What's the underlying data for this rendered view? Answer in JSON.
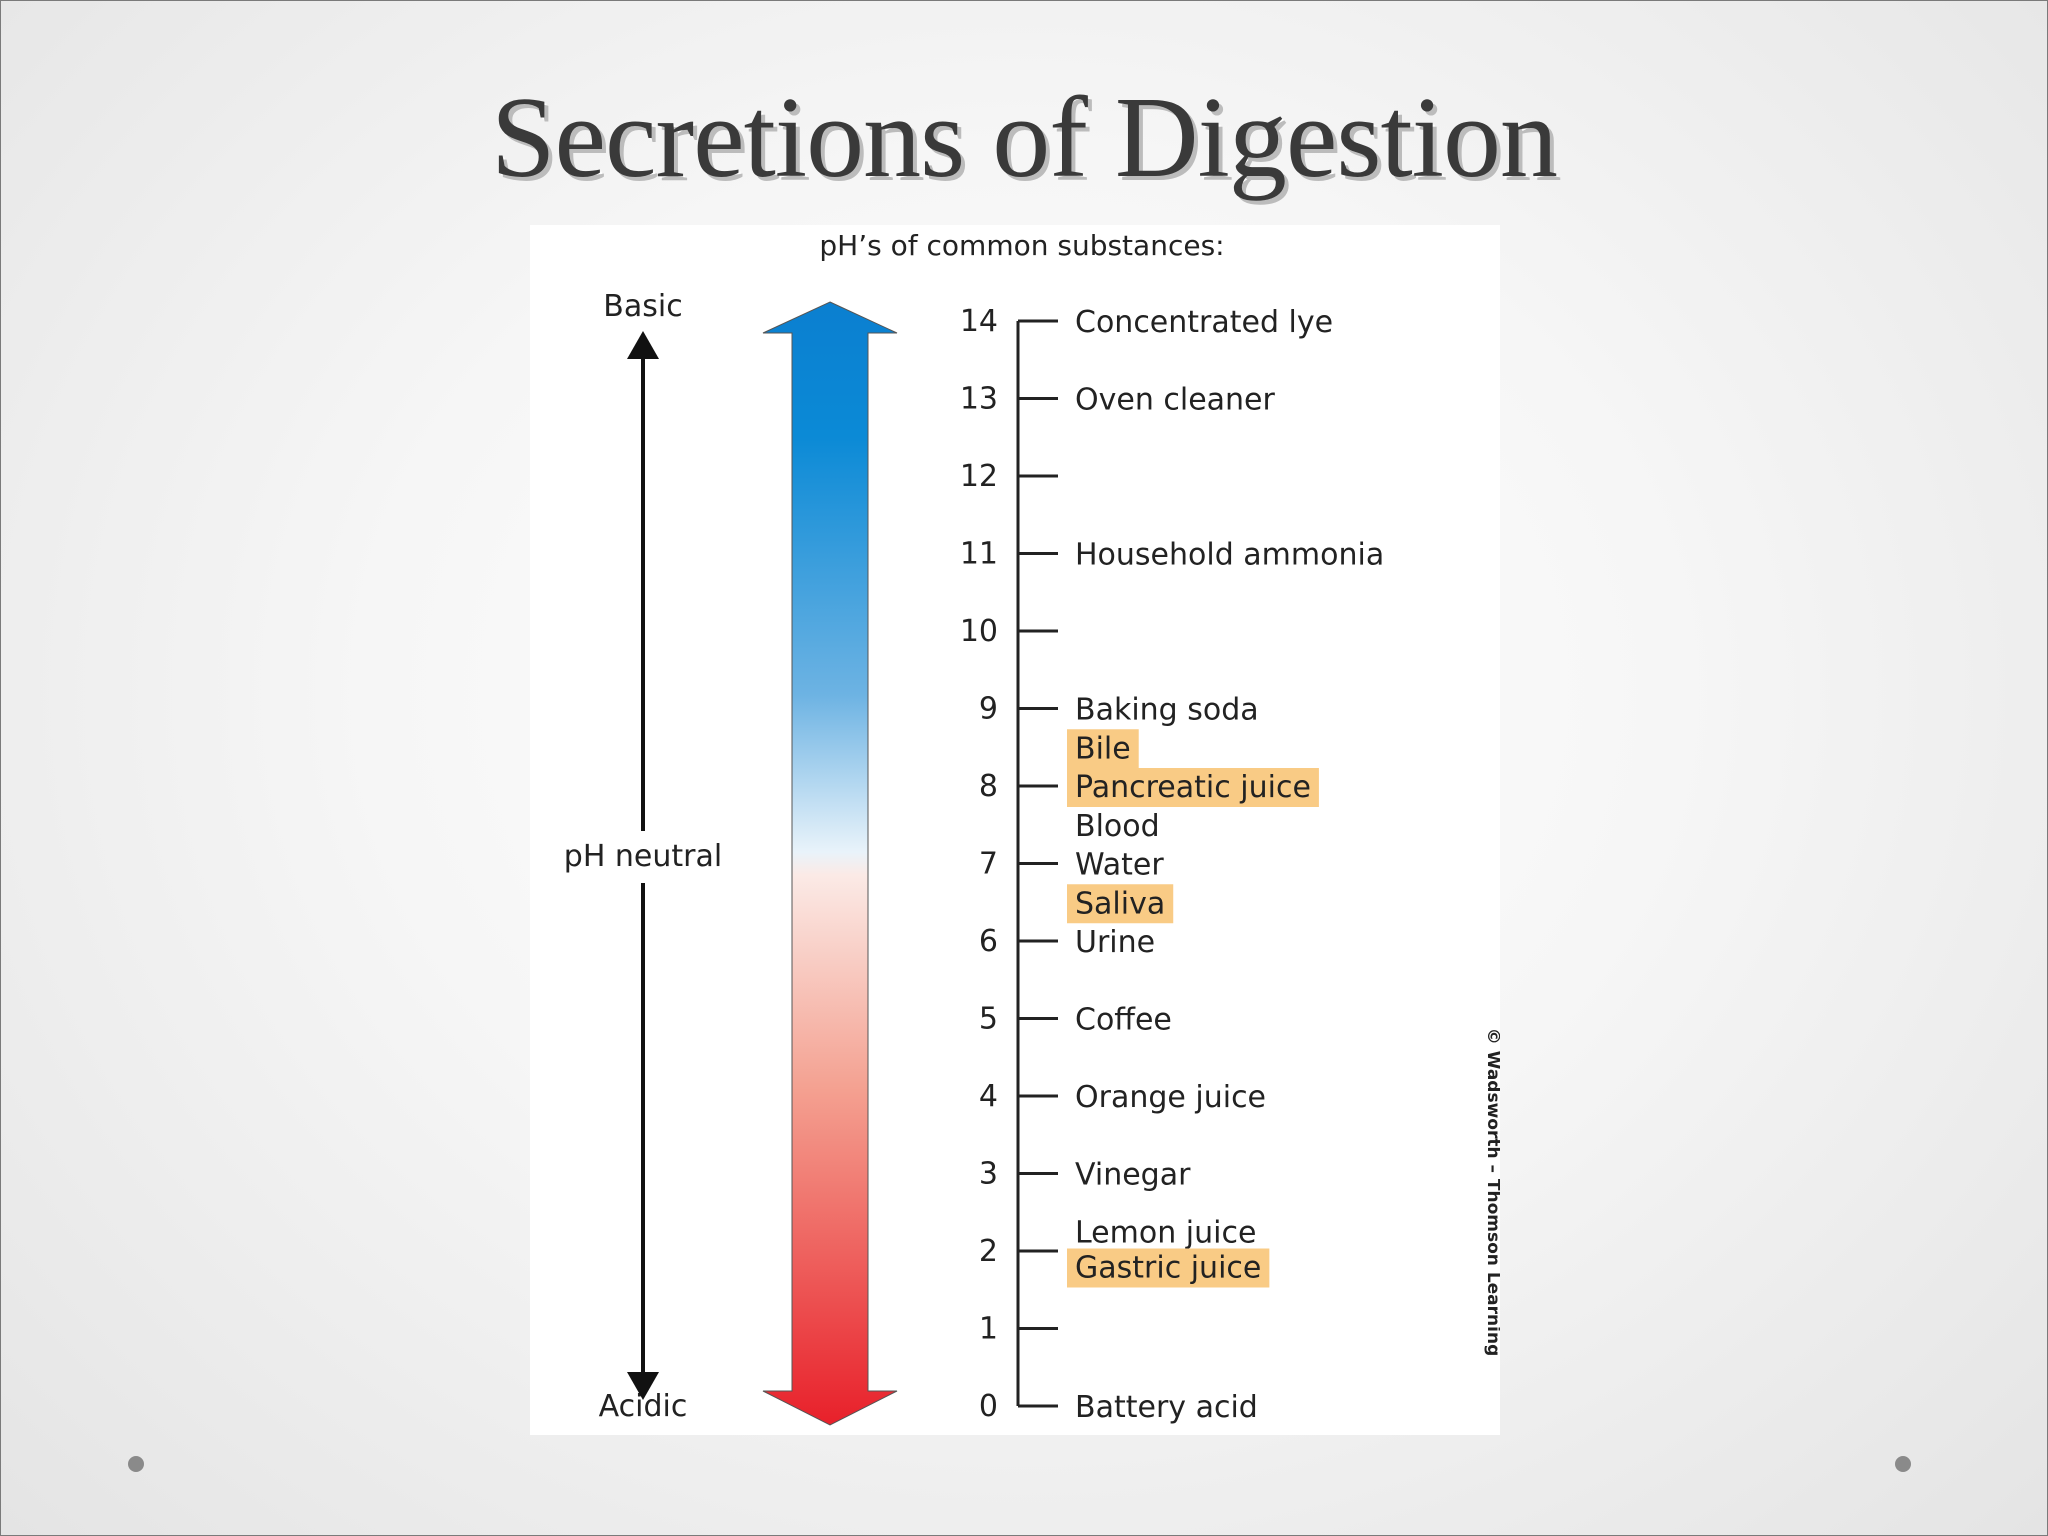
{
  "slide": {
    "title": "Secretions of Digestion",
    "accent_color": "#f9cb85",
    "basic_color": "#0b7fd0",
    "acidic_color": "#e8202a"
  },
  "chart_data": {
    "type": "scale",
    "title": "pH’s of common substances:",
    "axis": {
      "min": 0,
      "max": 14,
      "ticks": [
        14,
        13,
        12,
        11,
        10,
        9,
        8,
        7,
        6,
        5,
        4,
        3,
        2,
        1,
        0
      ]
    },
    "direction_labels": {
      "top": "Basic",
      "middle": "pH neutral",
      "bottom": "Acidic"
    },
    "substances": [
      {
        "ph": 14,
        "label": "Concentrated lye",
        "highlight": false
      },
      {
        "ph": 13,
        "label": "Oven cleaner",
        "highlight": false
      },
      {
        "ph": 11,
        "label": "Household ammonia",
        "highlight": false
      },
      {
        "ph": 9,
        "label": "Baking soda",
        "highlight": false
      },
      {
        "ph": 8.5,
        "label": "Bile",
        "highlight": true
      },
      {
        "ph": 8,
        "label": "Pancreatic juice",
        "highlight": true
      },
      {
        "ph": 7.5,
        "label": "Blood",
        "highlight": false
      },
      {
        "ph": 7,
        "label": "Water",
        "highlight": false
      },
      {
        "ph": 6.5,
        "label": "Saliva",
        "highlight": true
      },
      {
        "ph": 6,
        "label": "Urine",
        "highlight": false
      },
      {
        "ph": 5,
        "label": "Coffee",
        "highlight": false
      },
      {
        "ph": 4,
        "label": "Orange juice",
        "highlight": false
      },
      {
        "ph": 3,
        "label": "Vinegar",
        "highlight": false
      },
      {
        "ph": 2.25,
        "label": "Lemon juice",
        "highlight": false
      },
      {
        "ph": 1.8,
        "label": "Gastric juice",
        "highlight": true
      },
      {
        "ph": 0,
        "label": "Battery acid",
        "highlight": false
      }
    ],
    "credit": "© Wadsworth – Thomson Learning"
  }
}
